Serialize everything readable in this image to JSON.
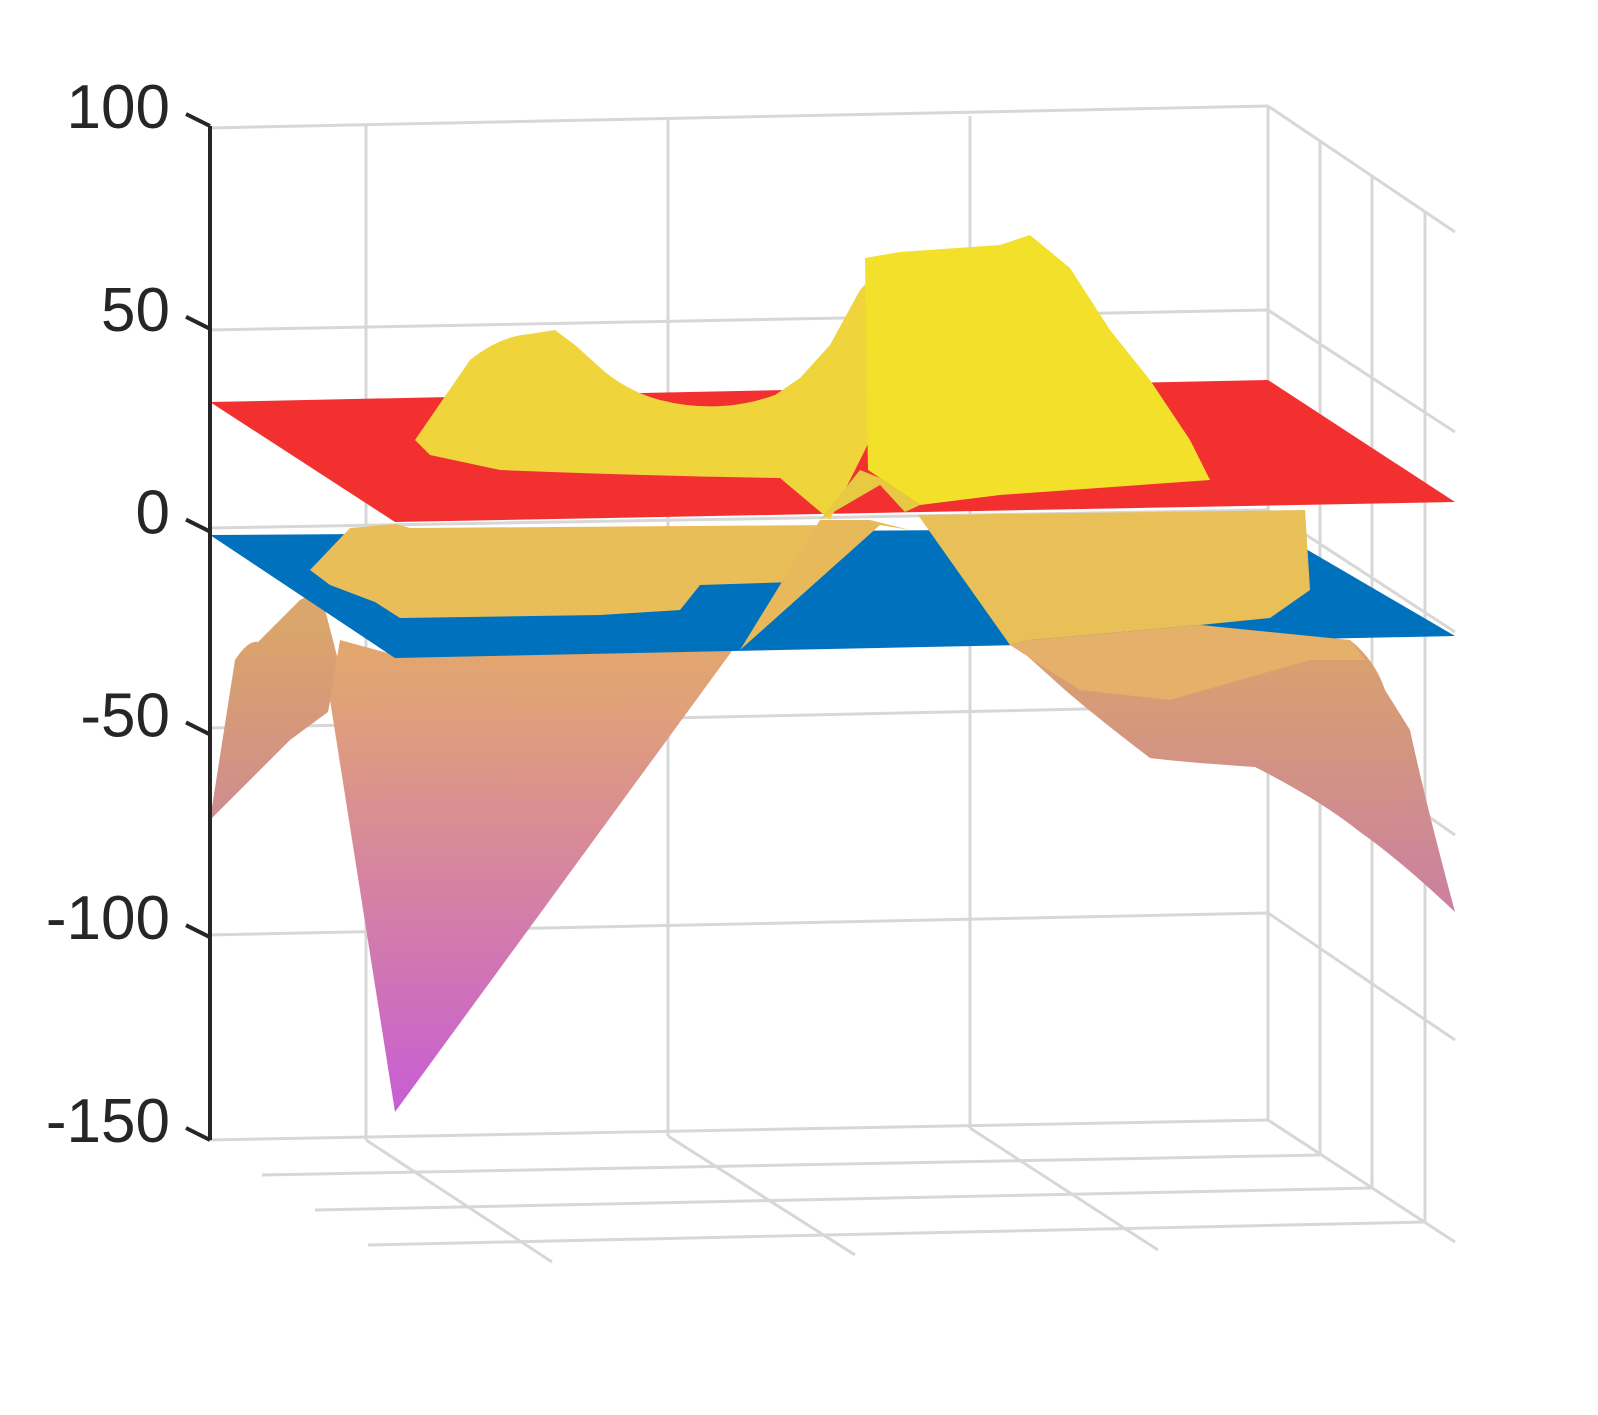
{
  "chart_data": {
    "type": "surface3d",
    "title": "",
    "xlabel": "",
    "ylabel": "",
    "zlabel": "",
    "zlim": [
      -150,
      100
    ],
    "zticks": [
      100,
      50,
      0,
      -50,
      -100,
      -150
    ],
    "z_tick_labels": [
      "100",
      "50",
      "0",
      "-50",
      "-100",
      "-150"
    ],
    "grid": true,
    "legend": "none",
    "planes": [
      {
        "z": 25,
        "color": "#f23030"
      },
      {
        "z": -10,
        "color": "#0072bd"
      }
    ],
    "surface_colormap": [
      "#c85fd2",
      "#e0a07a",
      "#e8b84a",
      "#ffff00"
    ],
    "surface_peaks": [
      {
        "z": 72
      },
      {
        "z": 47
      }
    ],
    "surface_min": -145
  }
}
